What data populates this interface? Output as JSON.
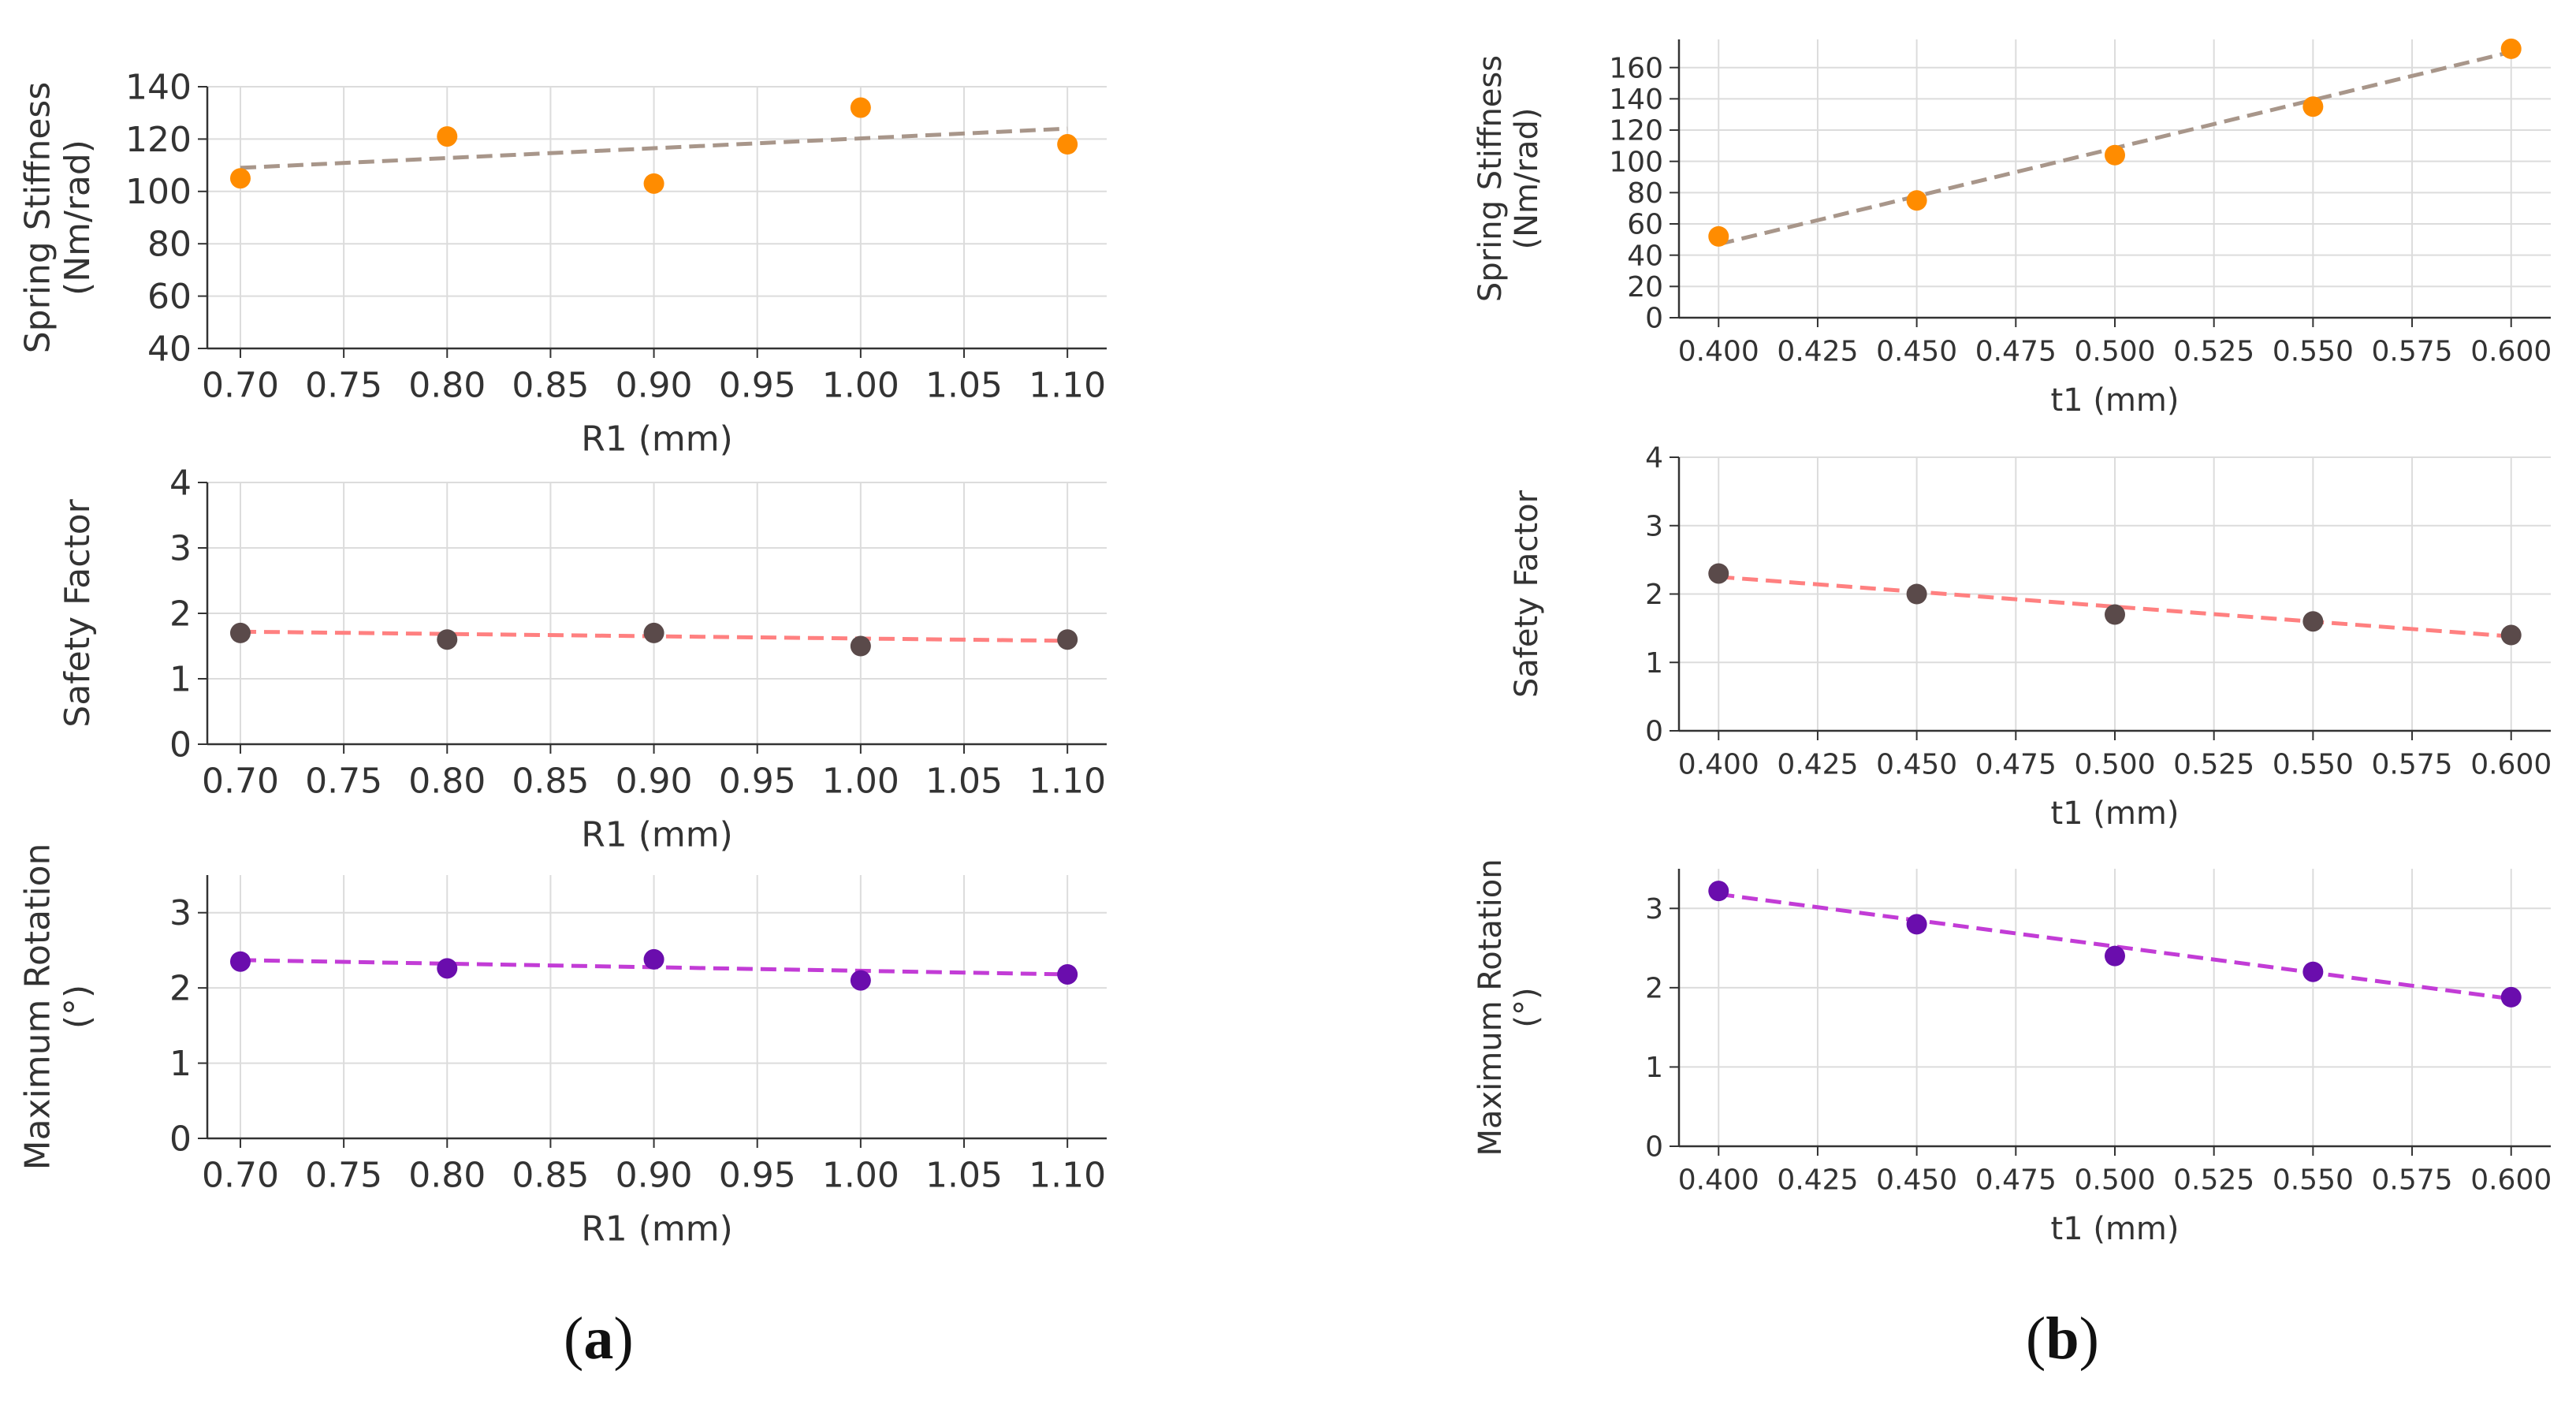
{
  "panel_labels": [
    {
      "open": "(",
      "letter": "a",
      "close": ")"
    },
    {
      "open": "(",
      "letter": "b",
      "close": ")"
    }
  ],
  "chart_data": [
    {
      "type": "scatter",
      "panel": "a",
      "x": [
        0.7,
        0.8,
        0.9,
        1.0,
        1.1
      ],
      "y": [
        105,
        121,
        103,
        132,
        118
      ],
      "trend": {
        "x": [
          0.7,
          1.1
        ],
        "y": [
          109,
          124
        ]
      },
      "xticks": [
        "0.70",
        "0.75",
        "0.80",
        "0.85",
        "0.90",
        "0.95",
        "1.00",
        "1.05",
        "1.10"
      ],
      "xlim": [
        0.684,
        1.119
      ],
      "xtick_start": 0.7,
      "xtick_step": 0.05,
      "yticks": [
        "40",
        "60",
        "80",
        "100",
        "120",
        "140"
      ],
      "ylim": [
        40,
        140
      ],
      "ytick_start": 40,
      "ytick_step": 20,
      "xlabel": "R1 (mm)",
      "ylabel": [
        "Spring Stiffness",
        "(Nm/rad)"
      ],
      "marker_color": "#ff8c00",
      "trend_color": "#a8968a",
      "grid": true
    },
    {
      "type": "scatter",
      "panel": "a",
      "x": [
        0.7,
        0.8,
        0.9,
        1.0,
        1.1
      ],
      "y": [
        1.7,
        1.6,
        1.7,
        1.5,
        1.6
      ],
      "trend": {
        "x": [
          0.7,
          1.1
        ],
        "y": [
          1.72,
          1.58
        ]
      },
      "xticks": [
        "0.70",
        "0.75",
        "0.80",
        "0.85",
        "0.90",
        "0.95",
        "1.00",
        "1.05",
        "1.10"
      ],
      "xlim": [
        0.684,
        1.119
      ],
      "xtick_start": 0.7,
      "xtick_step": 0.05,
      "yticks": [
        "0",
        "1",
        "2",
        "3",
        "4"
      ],
      "ylim": [
        0,
        4
      ],
      "ytick_start": 0,
      "ytick_step": 1,
      "xlabel": "R1 (mm)",
      "ylabel": [
        "Safety Factor"
      ],
      "marker_color": "#5a4a4a",
      "trend_color": "#ff8080",
      "grid": true
    },
    {
      "type": "scatter",
      "panel": "a",
      "x": [
        0.7,
        0.8,
        0.9,
        1.0,
        1.1
      ],
      "y": [
        2.35,
        2.26,
        2.38,
        2.1,
        2.18
      ],
      "trend": {
        "x": [
          0.7,
          1.1
        ],
        "y": [
          2.37,
          2.18
        ]
      },
      "xticks": [
        "0.70",
        "0.75",
        "0.80",
        "0.85",
        "0.90",
        "0.95",
        "1.00",
        "1.05",
        "1.10"
      ],
      "xlim": [
        0.684,
        1.119
      ],
      "xtick_start": 0.7,
      "xtick_step": 0.05,
      "yticks": [
        "0",
        "1",
        "2",
        "3"
      ],
      "ylim": [
        0,
        3.5
      ],
      "ytick_start": 0,
      "ytick_step": 1,
      "xlabel": "R1 (mm)",
      "ylabel": [
        "Maximum Rotation",
        "(°)"
      ],
      "marker_color": "#6a0dad",
      "trend_color": "#c23cd6",
      "grid": true
    },
    {
      "type": "scatter",
      "panel": "b",
      "x": [
        0.4,
        0.45,
        0.5,
        0.55,
        0.6
      ],
      "y": [
        52,
        75,
        104,
        135,
        172
      ],
      "trend": {
        "x": [
          0.4,
          0.6
        ],
        "y": [
          47,
          170
        ]
      },
      "xticks": [
        "0.400",
        "0.425",
        "0.450",
        "0.475",
        "0.500",
        "0.525",
        "0.550",
        "0.575",
        "0.600"
      ],
      "xlim": [
        0.39,
        0.61
      ],
      "xtick_start": 0.4,
      "xtick_step": 0.025,
      "yticks": [
        "0",
        "20",
        "40",
        "60",
        "80",
        "100",
        "120",
        "140",
        "160"
      ],
      "ylim": [
        0,
        178
      ],
      "ytick_start": 0,
      "ytick_step": 20,
      "xlabel": "t1 (mm)",
      "ylabel": [
        "Spring Stiffness",
        "(Nm/rad)"
      ],
      "marker_color": "#ff8c00",
      "trend_color": "#a8968a",
      "grid": true
    },
    {
      "type": "scatter",
      "panel": "b",
      "x": [
        0.4,
        0.45,
        0.5,
        0.55,
        0.6
      ],
      "y": [
        2.3,
        2.0,
        1.7,
        1.6,
        1.4
      ],
      "trend": {
        "x": [
          0.4,
          0.6
        ],
        "y": [
          2.25,
          1.38
        ]
      },
      "xticks": [
        "0.400",
        "0.425",
        "0.450",
        "0.475",
        "0.500",
        "0.525",
        "0.550",
        "0.575",
        "0.600"
      ],
      "xlim": [
        0.39,
        0.61
      ],
      "xtick_start": 0.4,
      "xtick_step": 0.025,
      "yticks": [
        "0",
        "1",
        "2",
        "3",
        "4"
      ],
      "ylim": [
        0,
        4
      ],
      "ytick_start": 0,
      "ytick_step": 1,
      "xlabel": "t1 (mm)",
      "ylabel": [
        "Safety Factor"
      ],
      "marker_color": "#5a4a4a",
      "trend_color": "#ff8080",
      "grid": true
    },
    {
      "type": "scatter",
      "panel": "b",
      "x": [
        0.4,
        0.45,
        0.5,
        0.55,
        0.6
      ],
      "y": [
        3.22,
        2.8,
        2.4,
        2.2,
        1.88
      ],
      "trend": {
        "x": [
          0.4,
          0.6
        ],
        "y": [
          3.18,
          1.86
        ]
      },
      "xticks": [
        "0.400",
        "0.425",
        "0.450",
        "0.475",
        "0.500",
        "0.525",
        "0.550",
        "0.575",
        "0.600"
      ],
      "xlim": [
        0.39,
        0.61
      ],
      "xtick_start": 0.4,
      "xtick_step": 0.025,
      "yticks": [
        "0",
        "1",
        "2",
        "3"
      ],
      "ylim": [
        0,
        3.5
      ],
      "ytick_start": 0,
      "ytick_step": 1,
      "xlabel": "t1 (mm)",
      "ylabel": [
        "Maximum Rotation",
        "(°)"
      ],
      "marker_color": "#6a0dad",
      "trend_color": "#c23cd6",
      "grid": true
    }
  ]
}
